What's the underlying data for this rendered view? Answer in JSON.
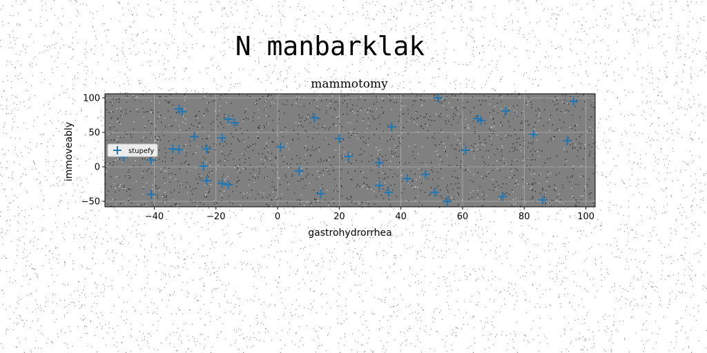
{
  "suptitle": "N manbarklak",
  "chart_data": {
    "type": "scatter",
    "title": "mammotomy",
    "xlabel": "gastrohydrorrhea",
    "ylabel": "immoveably",
    "xlim": [
      -56,
      103
    ],
    "ylim": [
      -58,
      106
    ],
    "xticks": [
      -40,
      -20,
      0,
      20,
      40,
      60,
      80,
      100
    ],
    "yticks": [
      -50,
      0,
      50,
      100
    ],
    "grid": true,
    "background": "#808080",
    "legend": {
      "position": "center-left",
      "entries": [
        "stupefy"
      ]
    },
    "series": [
      {
        "name": "stupefy",
        "marker": "+",
        "color": "#1f77b4",
        "points": [
          [
            -50,
            14
          ],
          [
            -41,
            10
          ],
          [
            -41,
            -40
          ],
          [
            -34,
            26
          ],
          [
            -32,
            84
          ],
          [
            -31,
            80
          ],
          [
            -32,
            25
          ],
          [
            -27,
            44
          ],
          [
            -24,
            1
          ],
          [
            -23,
            26
          ],
          [
            -23,
            -20
          ],
          [
            -18,
            42
          ],
          [
            -18,
            -24
          ],
          [
            -16,
            69
          ],
          [
            -16,
            -26
          ],
          [
            -14,
            64
          ],
          [
            1,
            29
          ],
          [
            7,
            -6
          ],
          [
            12,
            71
          ],
          [
            14,
            -39
          ],
          [
            20,
            41
          ],
          [
            23,
            15
          ],
          [
            33,
            6
          ],
          [
            33,
            -27
          ],
          [
            36,
            -37
          ],
          [
            37,
            58
          ],
          [
            42,
            -17
          ],
          [
            48,
            -11
          ],
          [
            51,
            -37
          ],
          [
            52,
            100
          ],
          [
            55,
            -50
          ],
          [
            61,
            24
          ],
          [
            65,
            70
          ],
          [
            66,
            67
          ],
          [
            73,
            -43
          ],
          [
            74,
            81
          ],
          [
            83,
            47
          ],
          [
            86,
            -48
          ],
          [
            94,
            38
          ],
          [
            96,
            95
          ]
        ]
      }
    ]
  }
}
